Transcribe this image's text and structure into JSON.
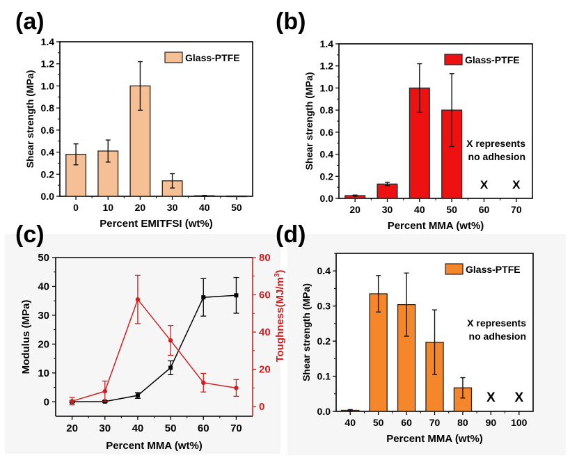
{
  "panel_labels": [
    "(a)",
    "(b)",
    "(c)",
    "(d)"
  ],
  "chart_data": [
    {
      "id": "a",
      "type": "bar",
      "title": "",
      "xlabel": "Percent EMITFSI (wt%)",
      "ylabel": "Shear strength (MPa)",
      "categories": [
        "0",
        "10",
        "20",
        "30",
        "40",
        "50"
      ],
      "values": [
        0.38,
        0.41,
        1.0,
        0.14,
        0.005,
        0.003
      ],
      "errors": [
        0.095,
        0.1,
        0.22,
        0.065,
        0.003,
        0.0
      ],
      "ylim": [
        0,
        1.4
      ],
      "yticks": [
        "0.0",
        "0.2",
        "0.4",
        "0.6",
        "0.8",
        "1.0",
        "1.2",
        "1.4"
      ],
      "legend": {
        "label": "Glass-PTFE",
        "position": "top-right"
      },
      "bar_color": "#f5c096",
      "annotations": [],
      "no_adhesion": []
    },
    {
      "id": "b",
      "type": "bar",
      "title": "",
      "xlabel": "Percent MMA (wt%)",
      "ylabel": "Shear strength (MPa)",
      "categories": [
        "20",
        "30",
        "40",
        "50",
        "60",
        "70"
      ],
      "values": [
        0.025,
        0.13,
        1.0,
        0.8,
        null,
        null
      ],
      "errors": [
        0.005,
        0.015,
        0.22,
        0.33,
        null,
        null
      ],
      "ylim": [
        0,
        1.4
      ],
      "yticks": [
        "0.0",
        "0.2",
        "0.4",
        "0.6",
        "0.8",
        "1.0",
        "1.2",
        "1.4"
      ],
      "legend": {
        "label": "Glass-PTFE",
        "position": "top-right"
      },
      "bar_color": "#ee1111",
      "annotations": [
        "X represents",
        "no adhesion"
      ],
      "no_adhesion": [
        "60",
        "70"
      ],
      "no_adhesion_marker": "X"
    },
    {
      "id": "c",
      "type": "line",
      "title": "",
      "xlabel": "Percent MMA (wt%)",
      "x": [
        20,
        30,
        40,
        50,
        60,
        70
      ],
      "xlim": [
        15,
        75
      ],
      "xticks": [
        "20",
        "30",
        "40",
        "50",
        "60",
        "70"
      ],
      "series": [
        {
          "name": "Modulus",
          "axis": "left",
          "color": "#000000",
          "values": [
            0.0,
            0.1,
            2.2,
            11.8,
            36.2,
            36.9
          ],
          "errors": [
            0.3,
            0.3,
            1.0,
            2.4,
            6.5,
            6.2
          ]
        },
        {
          "name": "Toughness",
          "axis": "right",
          "color": "#d11f1f",
          "values": [
            2.9,
            8.2,
            57.5,
            35.5,
            12.8,
            10.0
          ],
          "errors": [
            2.0,
            5.5,
            13.0,
            8.0,
            5.0,
            4.5
          ]
        }
      ],
      "ylabel_left": "Modulus (MPa)",
      "ylim_left": [
        -5,
        50
      ],
      "yticks_left": [
        "0",
        "10",
        "20",
        "30",
        "40",
        "50"
      ],
      "ylabel_right": "Toughness(MJ/m",
      "ylabel_right_sup": "3",
      "ylabel_right_close": ")",
      "ylim_right": [
        -5.2,
        80
      ],
      "yticks_right": [
        "0",
        "20",
        "40",
        "60",
        "80"
      ]
    },
    {
      "id": "d",
      "type": "bar",
      "title": "",
      "xlabel": "Percent MMA (wt%)",
      "ylabel": "Shear strength (MPa)",
      "categories": [
        "40",
        "50",
        "60",
        "70",
        "80",
        "90",
        "100"
      ],
      "values": [
        0.003,
        0.335,
        0.304,
        0.197,
        0.067,
        null,
        null
      ],
      "errors": [
        0.002,
        0.052,
        0.09,
        0.092,
        0.029,
        null,
        null
      ],
      "ylim": [
        0,
        0.45
      ],
      "yticks": [
        "0.0",
        "0.1",
        "0.2",
        "0.3",
        "0.4"
      ],
      "legend": {
        "label": "Glass-PTFE",
        "position": "top-right"
      },
      "bar_color": "#f5872a",
      "annotations": [
        "X represents",
        "no adhesion"
      ],
      "no_adhesion": [
        "90",
        "100"
      ],
      "no_adhesion_marker": "X"
    }
  ]
}
